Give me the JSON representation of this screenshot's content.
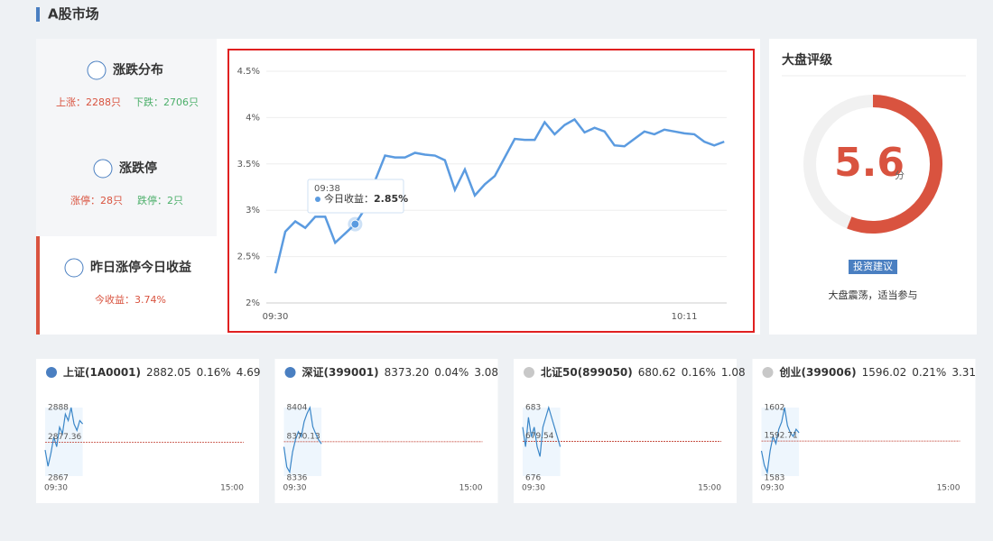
{
  "section_title": "A股市场",
  "left_menu": [
    {
      "title": "涨跌分布",
      "items": [
        "上涨：2288只",
        "下跌：2706只"
      ]
    },
    {
      "title": "涨跌停",
      "items": [
        "涨停：28只",
        "跌停：2只"
      ]
    },
    {
      "title": "昨日涨停今日收益",
      "items": [
        "今收益：3.74%"
      ]
    }
  ],
  "chart_data": {
    "type": "line",
    "x": [
      "09:30",
      null,
      null,
      null,
      null,
      null,
      null,
      null,
      null,
      null,
      null,
      null,
      null,
      null,
      null,
      null,
      null,
      null,
      null,
      null,
      null,
      null,
      null,
      null,
      null,
      null,
      null,
      null,
      null,
      null,
      null,
      null,
      null,
      null,
      null,
      null,
      null,
      null,
      null,
      null,
      null,
      "10:11",
      null,
      null,
      null,
      null
    ],
    "series": [
      {
        "name": "今日收益",
        "color": "#5b9be0",
        "values": [
          2.32,
          2.77,
          2.88,
          2.81,
          2.93,
          2.93,
          2.65,
          2.75,
          2.85,
          3.02,
          3.32,
          3.59,
          3.57,
          3.57,
          3.62,
          3.6,
          3.59,
          3.54,
          3.22,
          3.44,
          3.16,
          3.28,
          3.37,
          3.57,
          3.77,
          3.76,
          3.76,
          3.95,
          3.82,
          3.92,
          3.98,
          3.84,
          3.89,
          3.85,
          3.7,
          3.69,
          3.77,
          3.85,
          3.82,
          3.87,
          3.85,
          3.83,
          3.82,
          3.74,
          3.7,
          3.74
        ]
      }
    ],
    "ylim": [
      2,
      4.5
    ],
    "yticks": [
      {
        "value": 2,
        "label": "2%"
      },
      {
        "value": 2.5,
        "label": "2.5%"
      },
      {
        "value": 3,
        "label": "3%"
      },
      {
        "value": 3.5,
        "label": "3.5%"
      },
      {
        "value": 4,
        "label": "4%"
      },
      {
        "value": 4.5,
        "label": "4.5%"
      }
    ],
    "grid": true,
    "tooltip": {
      "time": "09:38",
      "label": "今日收益：",
      "value": 2.85,
      "value_label": "2.85%"
    }
  },
  "rating": {
    "title": "大盘评级",
    "score": "5.6",
    "unit": "分",
    "badge": "投资建议",
    "advice": "大盘震荡，适当参与"
  },
  "indices": [
    {
      "name": "上证(1A0001)",
      "price": "2882.05",
      "change": "0.16%",
      "volume": "4.69",
      "icon_color": "#4a7fc1",
      "max": 2888,
      "min": 2867,
      "base": 2877.36,
      "start": "09:30",
      "end": "15:00",
      "values": [
        2875,
        2870,
        2874,
        2879,
        2876,
        2882,
        2880,
        2886,
        2884,
        2888,
        2883,
        2881,
        2884,
        2883
      ]
    },
    {
      "name": "深证(399001)",
      "price": "8373.20",
      "change": "0.04%",
      "volume": "3.08",
      "icon_color": "#4a7fc1",
      "max": 8404,
      "min": 8336,
      "base": 8370.13,
      "start": "09:30",
      "end": "15:00",
      "values": [
        8365,
        8345,
        8340,
        8360,
        8372,
        8380,
        8375,
        8390,
        8398,
        8404,
        8385,
        8378,
        8372,
        8368
      ]
    },
    {
      "name": "北证50(899050)",
      "price": "680.62",
      "change": "0.16%",
      "volume": "1.08",
      "icon_color": "#c8c8c8",
      "max": 683,
      "min": 676,
      "base": 679.54,
      "start": "09:30",
      "end": "15:00",
      "values": [
        681,
        679,
        682,
        680,
        681,
        679,
        678,
        681,
        682,
        683,
        682,
        681,
        680,
        679
      ]
    },
    {
      "name": "创业(399006)",
      "price": "1596.02",
      "change": "0.21%",
      "volume": "3.31",
      "icon_color": "#c8c8c8",
      "max": 1602,
      "min": 1583,
      "base": 1592.71,
      "start": "09:30",
      "end": "15:00",
      "values": [
        1590,
        1586,
        1584,
        1590,
        1594,
        1592,
        1596,
        1598,
        1602,
        1597,
        1595,
        1594,
        1596,
        1595
      ]
    }
  ]
}
